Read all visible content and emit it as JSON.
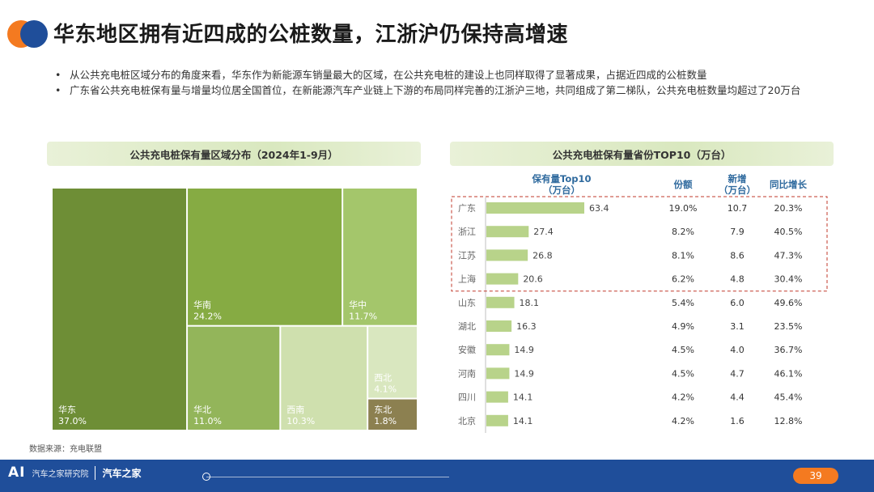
{
  "title": "华东地区拥有近四成的公桩数量，江浙沪仍保持高增速",
  "bullets": [
    "从公共充电桩区域分布的角度来看，华东作为新能源车销量最大的区域，在公共充电桩的建设上也同样取得了显著成果，占据近四成的公桩数量",
    "广东省公共充电桩保有量与增量均位居全国首位，在新能源汽车产业链上下游的布局同样完善的江浙沪三地，共同组成了第二梯队，公共充电桩数量均超过了20万台"
  ],
  "source": "数据来源：充电联盟",
  "footer": {
    "brand_main": "AI",
    "brand_sub": "汽车之家研究院",
    "brand_autohome": "汽车之家",
    "page_number": "39"
  },
  "colors": {
    "accent_orange": "#F47A20",
    "accent_blue": "#1F4E9A",
    "highlight_box": "#C0392B"
  },
  "chart_data": [
    {
      "type": "treemap",
      "title": "公共充电桩保有量区域分布（2024年1-9月）",
      "items": [
        {
          "name": "华东",
          "value": 37.0,
          "label": "37.0%",
          "color": "#6E8E36"
        },
        {
          "name": "华南",
          "value": 24.2,
          "label": "24.2%",
          "color": "#86AB43"
        },
        {
          "name": "华中",
          "value": 11.7,
          "label": "11.7%",
          "color": "#A4C66B"
        },
        {
          "name": "华北",
          "value": 11.0,
          "label": "11.0%",
          "color": "#93B55A"
        },
        {
          "name": "西南",
          "value": 10.3,
          "label": "10.3%",
          "color": "#CFE0AE"
        },
        {
          "name": "西北",
          "value": 4.1,
          "label": "4.1%",
          "color": "#D9E7BF"
        },
        {
          "name": "东北",
          "value": 1.8,
          "label": "1.8%",
          "color": "#8C8050"
        }
      ]
    },
    {
      "type": "table",
      "title": "公共充电桩保有量省份TOP10（万台）",
      "columns": [
        "保有量Top10（万台）",
        "份额",
        "新增（万台）",
        "同比增长"
      ],
      "column_lines": [
        [
          "保有量Top10",
          "（万台）"
        ],
        [
          "份额"
        ],
        [
          "新增",
          "（万台）"
        ],
        [
          "同比增长"
        ]
      ],
      "rows": [
        {
          "province": "广东",
          "stock": 63.4,
          "stock_label": "63.4",
          "share": "19.0%",
          "new": "10.7",
          "yoy": "20.3%"
        },
        {
          "province": "浙江",
          "stock": 27.4,
          "stock_label": "27.4",
          "share": "8.2%",
          "new": "7.9",
          "yoy": "40.5%"
        },
        {
          "province": "江苏",
          "stock": 26.8,
          "stock_label": "26.8",
          "share": "8.1%",
          "new": "8.6",
          "yoy": "47.3%"
        },
        {
          "province": "上海",
          "stock": 20.6,
          "stock_label": "20.6",
          "share": "6.2%",
          "new": "4.8",
          "yoy": "30.4%"
        },
        {
          "province": "山东",
          "stock": 18.1,
          "stock_label": "18.1",
          "share": "5.4%",
          "new": "6.0",
          "yoy": "49.6%"
        },
        {
          "province": "湖北",
          "stock": 16.3,
          "stock_label": "16.3",
          "share": "4.9%",
          "new": "3.1",
          "yoy": "23.5%"
        },
        {
          "province": "安徽",
          "stock": 14.9,
          "stock_label": "14.9",
          "share": "4.5%",
          "new": "4.0",
          "yoy": "36.7%"
        },
        {
          "province": "河南",
          "stock": 14.9,
          "stock_label": "14.9",
          "share": "4.5%",
          "new": "4.7",
          "yoy": "46.1%"
        },
        {
          "province": "四川",
          "stock": 14.1,
          "stock_label": "14.1",
          "share": "4.2%",
          "new": "4.4",
          "yoy": "45.4%"
        },
        {
          "province": "北京",
          "stock": 14.1,
          "stock_label": "14.1",
          "share": "4.2%",
          "new": "1.6",
          "yoy": "12.8%"
        }
      ],
      "highlighted_rows": [
        "广东",
        "浙江",
        "江苏",
        "上海"
      ],
      "bar_color": "#B8D38A"
    }
  ]
}
